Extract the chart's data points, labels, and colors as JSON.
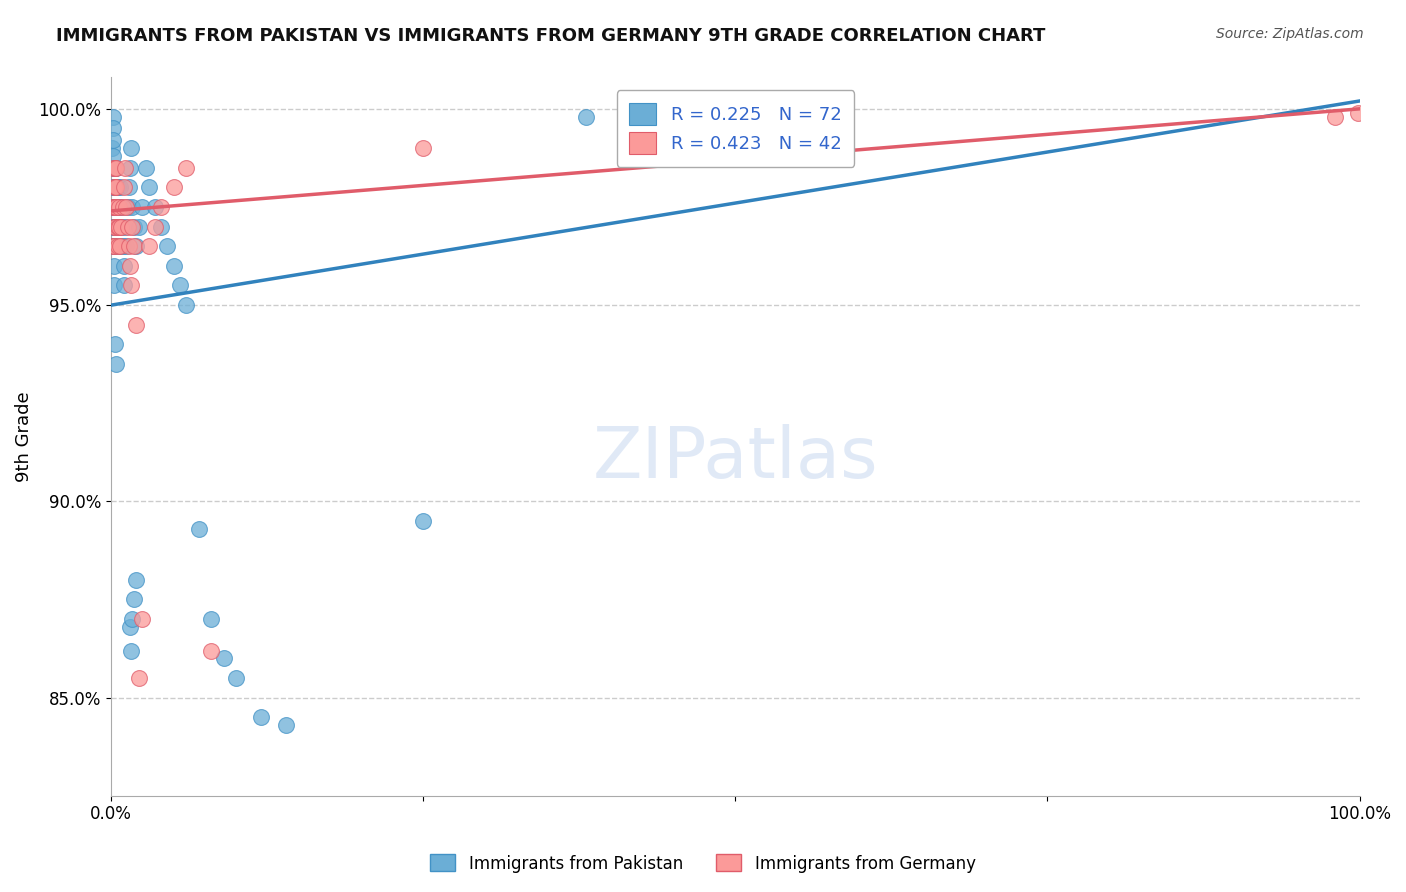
{
  "title": "IMMIGRANTS FROM PAKISTAN VS IMMIGRANTS FROM GERMANY 9TH GRADE CORRELATION CHART",
  "source": "Source: ZipAtlas.com",
  "ylabel": "9th Grade",
  "x_min": 0.0,
  "x_max": 1.0,
  "y_min": 0.825,
  "y_max": 1.008,
  "pakistan_color": "#6baed6",
  "germany_color": "#fb9a99",
  "pakistan_edge": "#4292c6",
  "germany_edge": "#e05c6a",
  "trend_pakistan_color": "#3182bd",
  "trend_germany_color": "#e05c6a",
  "R_pakistan": 0.225,
  "N_pakistan": 72,
  "R_germany": 0.423,
  "N_germany": 42,
  "legend_label_pakistan": "Immigrants from Pakistan",
  "legend_label_germany": "Immigrants from Germany",
  "background_color": "#ffffff",
  "grid_color": "#cccccc",
  "pakistan_x": [
    0.0008,
    0.001,
    0.001,
    0.001,
    0.001,
    0.001,
    0.0012,
    0.0013,
    0.0015,
    0.0015,
    0.002,
    0.002,
    0.002,
    0.002,
    0.002,
    0.0022,
    0.0025,
    0.003,
    0.003,
    0.003,
    0.003,
    0.003,
    0.004,
    0.004,
    0.004,
    0.004,
    0.005,
    0.005,
    0.005,
    0.006,
    0.006,
    0.007,
    0.007,
    0.008,
    0.008,
    0.009,
    0.01,
    0.01,
    0.011,
    0.012,
    0.013,
    0.014,
    0.015,
    0.016,
    0.017,
    0.018,
    0.02,
    0.022,
    0.025,
    0.028,
    0.03,
    0.035,
    0.04,
    0.045,
    0.05,
    0.055,
    0.06,
    0.07,
    0.08,
    0.09,
    0.1,
    0.12,
    0.14,
    0.015,
    0.016,
    0.017,
    0.018,
    0.02,
    0.003,
    0.004,
    0.25,
    0.38
  ],
  "pakistan_y": [
    0.99,
    0.985,
    0.98,
    0.975,
    0.97,
    0.965,
    0.998,
    0.995,
    0.992,
    0.988,
    0.985,
    0.98,
    0.975,
    0.97,
    0.965,
    0.96,
    0.955,
    0.985,
    0.98,
    0.975,
    0.97,
    0.965,
    0.985,
    0.98,
    0.975,
    0.97,
    0.98,
    0.975,
    0.97,
    0.975,
    0.97,
    0.965,
    0.98,
    0.975,
    0.97,
    0.965,
    0.96,
    0.955,
    0.97,
    0.965,
    0.975,
    0.98,
    0.985,
    0.99,
    0.975,
    0.97,
    0.965,
    0.97,
    0.975,
    0.985,
    0.98,
    0.975,
    0.97,
    0.965,
    0.96,
    0.955,
    0.95,
    0.893,
    0.87,
    0.86,
    0.855,
    0.845,
    0.843,
    0.868,
    0.862,
    0.87,
    0.875,
    0.88,
    0.94,
    0.935,
    0.895,
    0.998
  ],
  "germany_x": [
    0.001,
    0.001,
    0.001,
    0.002,
    0.002,
    0.002,
    0.002,
    0.003,
    0.003,
    0.003,
    0.003,
    0.004,
    0.004,
    0.004,
    0.005,
    0.005,
    0.006,
    0.006,
    0.007,
    0.008,
    0.009,
    0.01,
    0.011,
    0.012,
    0.013,
    0.014,
    0.015,
    0.016,
    0.017,
    0.018,
    0.02,
    0.022,
    0.025,
    0.03,
    0.035,
    0.04,
    0.05,
    0.06,
    0.08,
    0.25,
    0.98,
    0.999
  ],
  "germany_y": [
    0.985,
    0.975,
    0.965,
    0.98,
    0.975,
    0.97,
    0.965,
    0.985,
    0.98,
    0.975,
    0.97,
    0.985,
    0.98,
    0.975,
    0.97,
    0.965,
    0.97,
    0.975,
    0.965,
    0.97,
    0.975,
    0.98,
    0.985,
    0.975,
    0.97,
    0.965,
    0.96,
    0.955,
    0.97,
    0.965,
    0.945,
    0.855,
    0.87,
    0.965,
    0.97,
    0.975,
    0.98,
    0.985,
    0.862,
    0.99,
    0.998,
    0.999
  ],
  "pak_trend_x": [
    0.0,
    1.0
  ],
  "pak_trend_y": [
    0.95,
    1.002
  ],
  "ger_trend_x": [
    0.0,
    1.0
  ],
  "ger_trend_y": [
    0.974,
    1.0
  ]
}
